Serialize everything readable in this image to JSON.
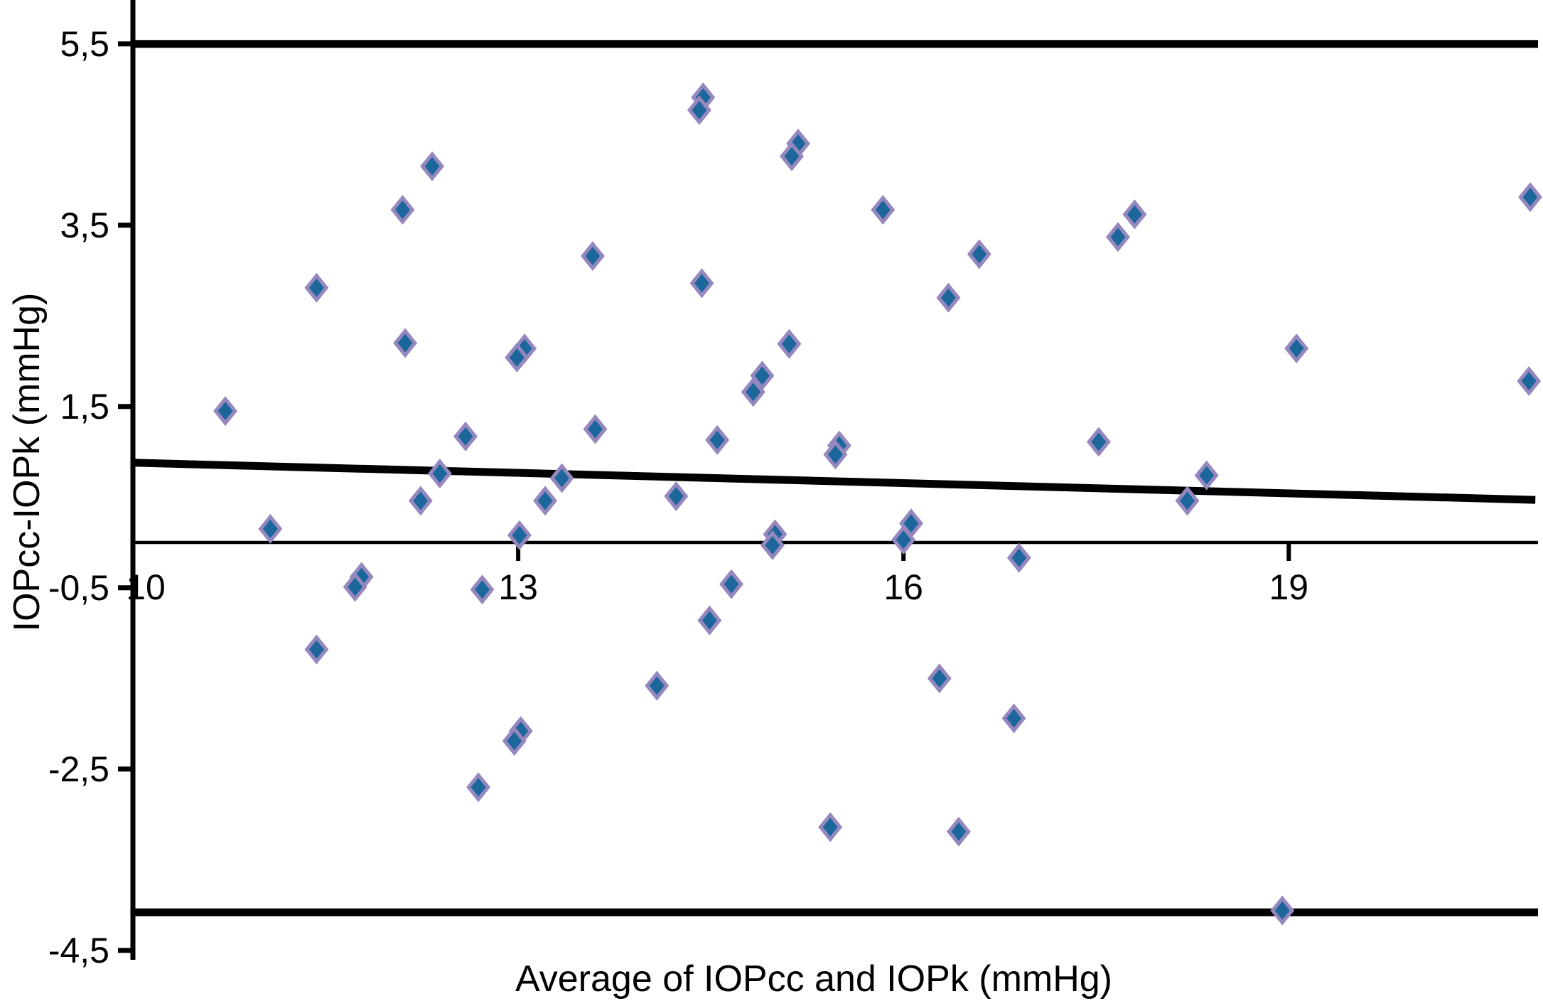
{
  "figure": {
    "background": "#ffffff",
    "axis_color": "#000000"
  },
  "chart_data": {
    "type": "scatter",
    "title": "",
    "xlabel": "Average of IOPcc and IOPk (mmHg)",
    "ylabel": "IOPcc-IOPk (mmHg)",
    "xlim": [
      10,
      20.98
    ],
    "ylim": [
      -4.7,
      5.9
    ],
    "grid": "off",
    "legend": "none",
    "decimal_separator": ",",
    "x_ticks": [
      {
        "v": 10,
        "label": "10",
        "tick": false,
        "label_v": 10.1
      },
      {
        "v": 13,
        "label": "13",
        "tick": true
      },
      {
        "v": 16,
        "label": "16",
        "tick": true
      },
      {
        "v": 19,
        "label": "19",
        "tick": true
      }
    ],
    "y_ticks": [
      {
        "v": 5.5,
        "label": "5,5"
      },
      {
        "v": 3.5,
        "label": "3,5"
      },
      {
        "v": 1.5,
        "label": "1,5"
      },
      {
        "v": -0.5,
        "label": "-0,5"
      },
      {
        "v": -2.5,
        "label": "-2,5"
      },
      {
        "v": -4.5,
        "label": "-4,5"
      }
    ],
    "marker": {
      "shape": "diamond",
      "fill": "#1B679B",
      "border": "#9688BE",
      "outer_rx": 17,
      "outer_ry": 21,
      "inner_rx": 10.5,
      "inner_ry": 13
    },
    "reference_lines": [
      {
        "name": "upper-limit-of-agreement",
        "y": 5.5,
        "width": 11
      },
      {
        "name": "zero-line",
        "y": 0,
        "width": 4.5
      },
      {
        "name": "lower-limit-of-agreement",
        "y": -4.08,
        "width": 11
      }
    ],
    "bias_trend_line": {
      "x1": 10,
      "y1": 0.88,
      "x2": 20.92,
      "y2": 0.47,
      "width": 11
    },
    "points": [
      [
        12.33,
        4.15
      ],
      [
        12.1,
        3.67
      ],
      [
        11.43,
        2.81
      ],
      [
        13.58,
        3.16
      ],
      [
        14.44,
        4.91
      ],
      [
        14.41,
        4.77
      ],
      [
        15.18,
        4.4
      ],
      [
        15.13,
        4.26
      ],
      [
        15.84,
        3.67
      ],
      [
        16.59,
        3.18
      ],
      [
        14.43,
        2.86
      ],
      [
        16.35,
        2.7
      ],
      [
        17.8,
        3.62
      ],
      [
        17.67,
        3.37
      ],
      [
        20.88,
        3.81
      ],
      [
        12.12,
        2.2
      ],
      [
        13.05,
        2.14
      ],
      [
        12.99,
        2.04
      ],
      [
        10.72,
        1.45
      ],
      [
        12.59,
        1.17
      ],
      [
        13.6,
        1.25
      ],
      [
        12.39,
        0.76
      ],
      [
        13.34,
        0.71
      ],
      [
        12.24,
        0.46
      ],
      [
        13.21,
        0.46
      ],
      [
        11.07,
        0.15
      ],
      [
        13.01,
        0.08
      ],
      [
        11.78,
        -0.38
      ],
      [
        11.73,
        -0.49
      ],
      [
        12.72,
        -0.52
      ],
      [
        15.11,
        2.19
      ],
      [
        14.9,
        1.84
      ],
      [
        14.83,
        1.66
      ],
      [
        14.55,
        1.13
      ],
      [
        15.5,
        1.07
      ],
      [
        15.47,
        0.97
      ],
      [
        14.23,
        0.51
      ],
      [
        15.0,
        0.09
      ],
      [
        14.98,
        -0.03
      ],
      [
        16.06,
        0.21
      ],
      [
        16.0,
        0.03
      ],
      [
        16.9,
        -0.17
      ],
      [
        14.66,
        -0.46
      ],
      [
        14.49,
        -0.86
      ],
      [
        19.06,
        2.14
      ],
      [
        20.87,
        1.78
      ],
      [
        17.52,
        1.11
      ],
      [
        18.36,
        0.74
      ],
      [
        18.21,
        0.46
      ],
      [
        11.43,
        -1.18
      ],
      [
        13.02,
        -2.08
      ],
      [
        12.97,
        -2.19
      ],
      [
        12.69,
        -2.7
      ],
      [
        14.08,
        -1.58
      ],
      [
        16.28,
        -1.5
      ],
      [
        16.86,
        -1.94
      ],
      [
        15.43,
        -3.14
      ],
      [
        16.43,
        -3.19
      ],
      [
        18.95,
        -4.06
      ]
    ]
  }
}
